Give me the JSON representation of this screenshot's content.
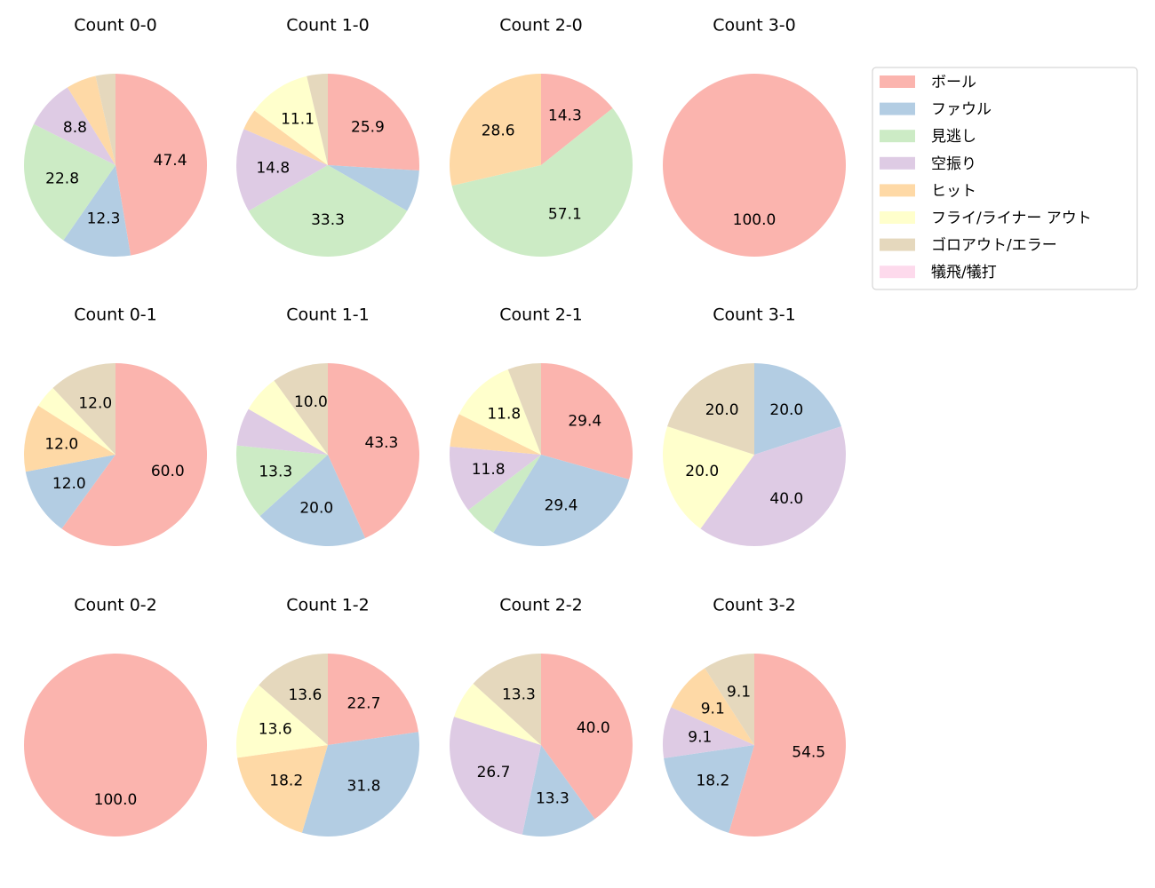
{
  "chart_data": {
    "type": "pie",
    "categories": [
      "ボール",
      "ファウル",
      "見逃し",
      "空振り",
      "ヒット",
      "フライ/ライナー アウト",
      "ゴロアウト/エラー",
      "犠飛/犠打"
    ],
    "colors": [
      "#fbb4ae",
      "#b3cde3",
      "#ccebc5",
      "#decbe4",
      "#fed9a6",
      "#ffffcc",
      "#e5d8bd",
      "#fddaec"
    ],
    "legend": "upper right",
    "subplots": [
      {
        "title": "Count 0-0",
        "values": [
          47.4,
          12.3,
          22.8,
          8.8,
          5.3,
          0,
          3.5,
          0
        ],
        "value_labels": [
          "47.4",
          "12.3",
          "22.8",
          "8.8",
          null,
          null,
          null,
          null
        ]
      },
      {
        "title": "Count 1-0",
        "values": [
          25.9,
          7.4,
          33.3,
          14.8,
          3.7,
          11.1,
          3.7,
          0
        ],
        "value_labels": [
          "25.9",
          null,
          "33.3",
          "14.8",
          null,
          "11.1",
          null,
          null
        ]
      },
      {
        "title": "Count 2-0",
        "values": [
          14.3,
          0,
          57.1,
          0,
          28.6,
          0,
          0,
          0
        ],
        "value_labels": [
          "14.3",
          null,
          "57.1",
          null,
          "28.6",
          null,
          null,
          null
        ]
      },
      {
        "title": "Count 3-0",
        "values": [
          100,
          0,
          0,
          0,
          0,
          0,
          0,
          0
        ],
        "value_labels": [
          "100.0",
          null,
          null,
          null,
          null,
          null,
          null,
          null
        ]
      },
      {
        "title": "Count 0-1",
        "values": [
          60,
          12,
          0,
          0,
          12,
          4,
          12,
          0
        ],
        "value_labels": [
          "60.0",
          "12.0",
          null,
          null,
          "12.0",
          null,
          "12.0",
          null
        ]
      },
      {
        "title": "Count 1-1",
        "values": [
          43.3,
          20,
          13.3,
          6.7,
          0,
          6.7,
          10,
          0
        ],
        "value_labels": [
          "43.3",
          "20.0",
          "13.3",
          null,
          null,
          null,
          "10.0",
          null
        ]
      },
      {
        "title": "Count 2-1",
        "values": [
          29.4,
          29.4,
          5.9,
          11.8,
          5.9,
          11.8,
          5.9,
          0
        ],
        "value_labels": [
          "29.4",
          "29.4",
          null,
          "11.8",
          null,
          "11.8",
          null,
          null
        ]
      },
      {
        "title": "Count 3-1",
        "values": [
          0,
          20,
          0,
          40,
          0,
          20,
          20,
          0
        ],
        "value_labels": [
          null,
          "20.0",
          null,
          "40.0",
          null,
          "20.0",
          "20.0",
          null
        ]
      },
      {
        "title": "Count 0-2",
        "values": [
          100,
          0,
          0,
          0,
          0,
          0,
          0,
          0
        ],
        "value_labels": [
          "100.0",
          null,
          null,
          null,
          null,
          null,
          null,
          null
        ]
      },
      {
        "title": "Count 1-2",
        "values": [
          22.7,
          31.8,
          0,
          0,
          18.2,
          13.6,
          13.6,
          0
        ],
        "value_labels": [
          "22.7",
          "31.8",
          null,
          null,
          "18.2",
          "13.6",
          "13.6",
          null
        ]
      },
      {
        "title": "Count 2-2",
        "values": [
          40,
          13.3,
          0,
          26.7,
          0,
          6.7,
          13.3,
          0
        ],
        "value_labels": [
          "40.0",
          "13.3",
          null,
          "26.7",
          null,
          null,
          "13.3",
          null
        ]
      },
      {
        "title": "Count 3-2",
        "values": [
          54.5,
          18.2,
          0,
          9.1,
          9.1,
          0,
          9.1,
          0
        ],
        "value_labels": [
          "54.5",
          "18.2",
          null,
          "9.1",
          "9.1",
          null,
          "9.1",
          null
        ]
      }
    ]
  }
}
